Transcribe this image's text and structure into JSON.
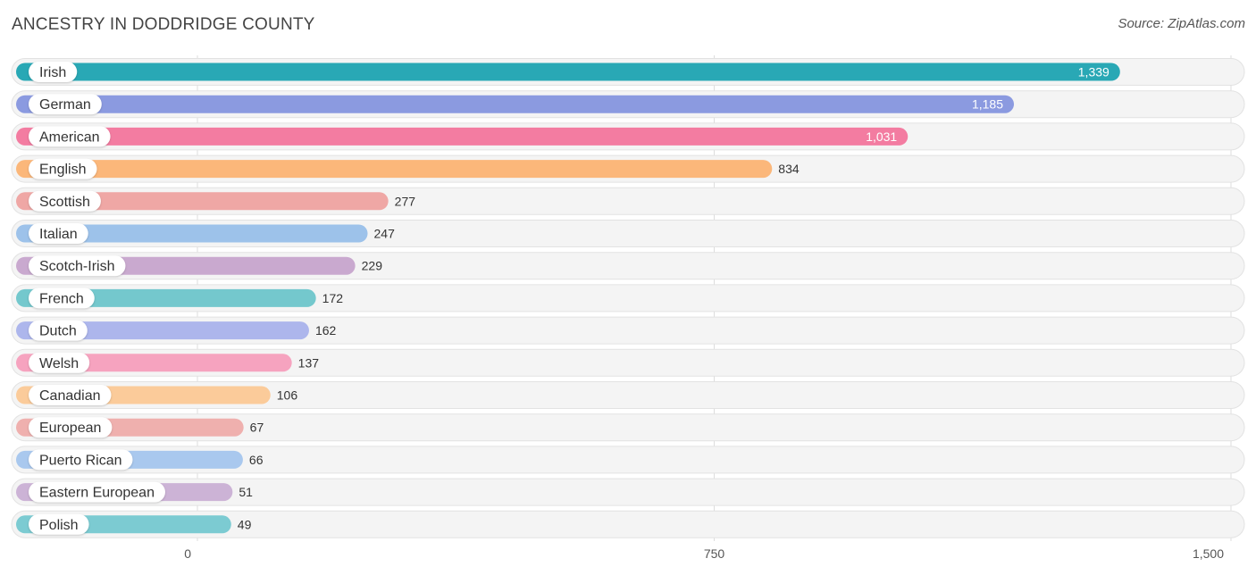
{
  "title": "ANCESTRY IN DODDRIDGE COUNTY",
  "source": "Source: ZipAtlas.com",
  "chart_data": {
    "type": "bar",
    "orientation": "horizontal",
    "categories": [
      "Irish",
      "German",
      "American",
      "English",
      "Scottish",
      "Italian",
      "Scotch-Irish",
      "French",
      "Dutch",
      "Welsh",
      "Canadian",
      "European",
      "Puerto Rican",
      "Eastern European",
      "Polish"
    ],
    "values": [
      1339,
      1185,
      1031,
      834,
      277,
      247,
      229,
      172,
      162,
      137,
      106,
      67,
      66,
      51,
      49
    ],
    "value_labels": [
      "1,339",
      "1,185",
      "1,031",
      "834",
      "277",
      "247",
      "229",
      "172",
      "162",
      "137",
      "106",
      "67",
      "66",
      "51",
      "49"
    ],
    "colors": [
      "#29a8b5",
      "#8b9ae0",
      "#f37ca1",
      "#fbb77a",
      "#efa7a5",
      "#9dc2ea",
      "#c9a9cf",
      "#74c8cd",
      "#adb6ec",
      "#f6a3bf",
      "#fbcb9a",
      "#efb0ae",
      "#a9c8ee",
      "#ccb3d6",
      "#7ccbd2"
    ],
    "xlim": [
      0,
      1500
    ],
    "ticks": [
      0,
      750,
      1500
    ],
    "tick_labels": [
      "0",
      "750",
      "1,500"
    ],
    "grid": true
  }
}
